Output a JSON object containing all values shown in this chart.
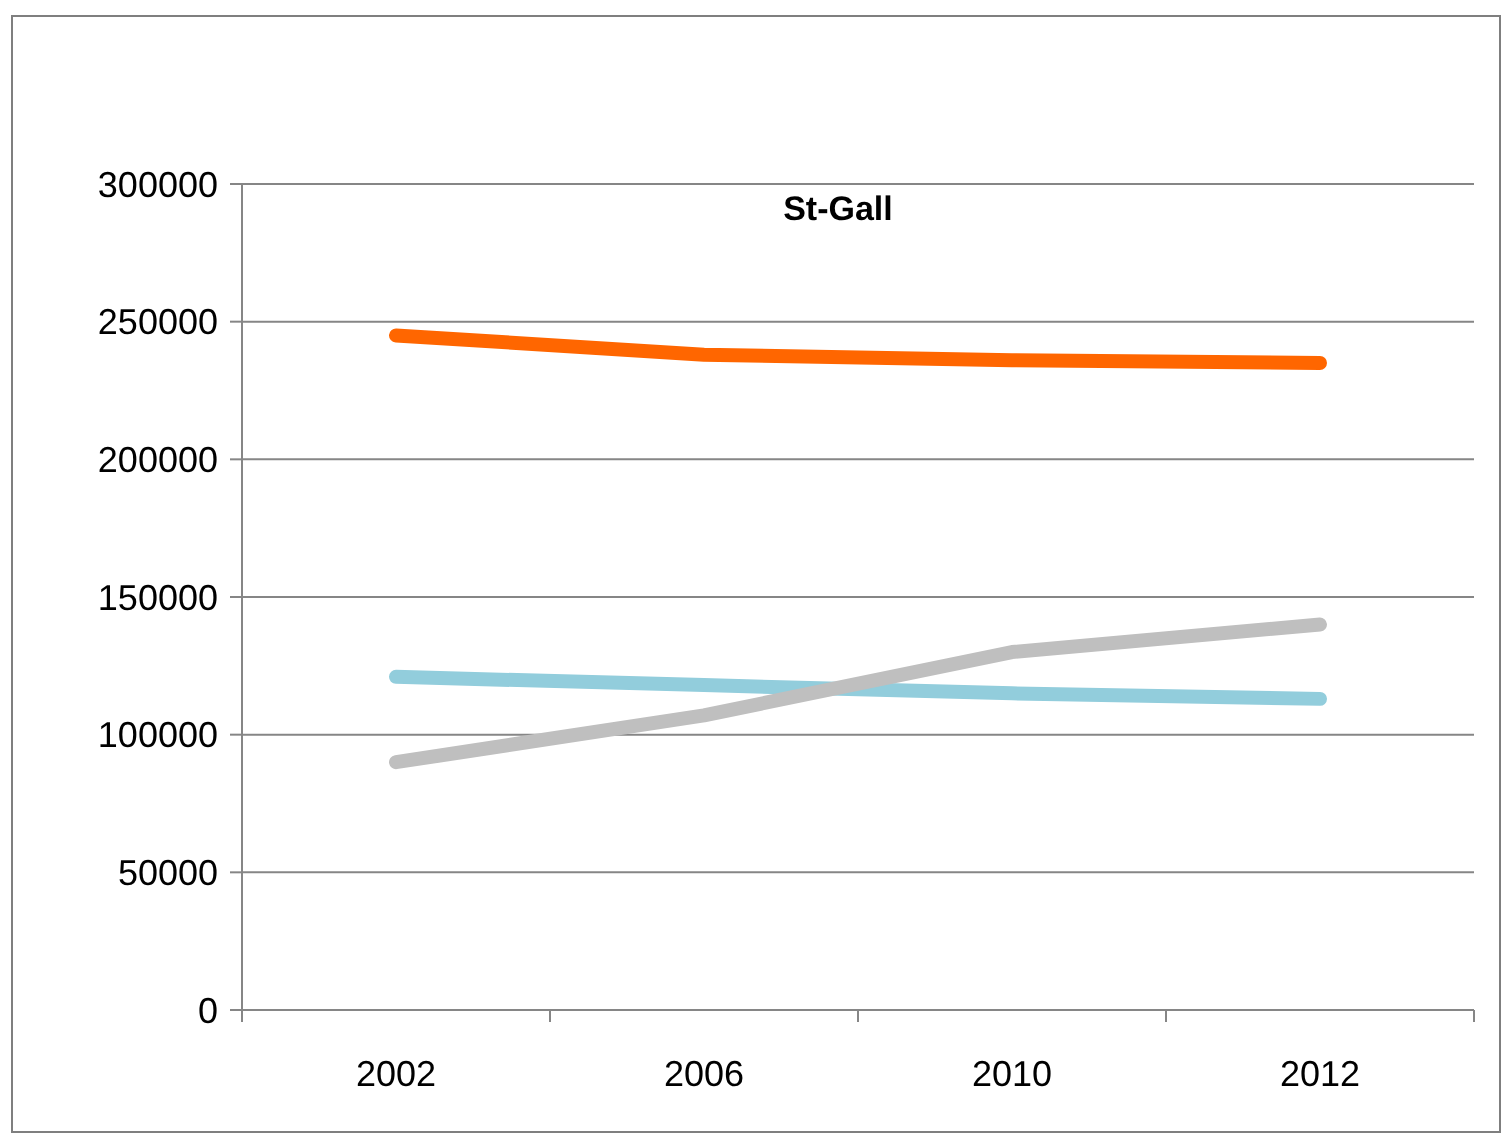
{
  "chart_data": {
    "type": "line",
    "title": "St-Gall",
    "categories": [
      "2002",
      "2006",
      "2010",
      "2012"
    ],
    "series": [
      {
        "color": "#ff6600",
        "values": [
          245000,
          238000,
          236000,
          235000
        ]
      },
      {
        "color": "#92cddc",
        "values": [
          121000,
          118000,
          115000,
          113000
        ]
      },
      {
        "color": "#bfbfbf",
        "values": [
          90000,
          107000,
          130000,
          140000
        ]
      }
    ],
    "ylim": [
      0,
      300000
    ],
    "yticks": [
      0,
      50000,
      100000,
      150000,
      200000,
      250000,
      300000
    ],
    "grid": "y",
    "marker": "none",
    "line_style": "solid"
  }
}
